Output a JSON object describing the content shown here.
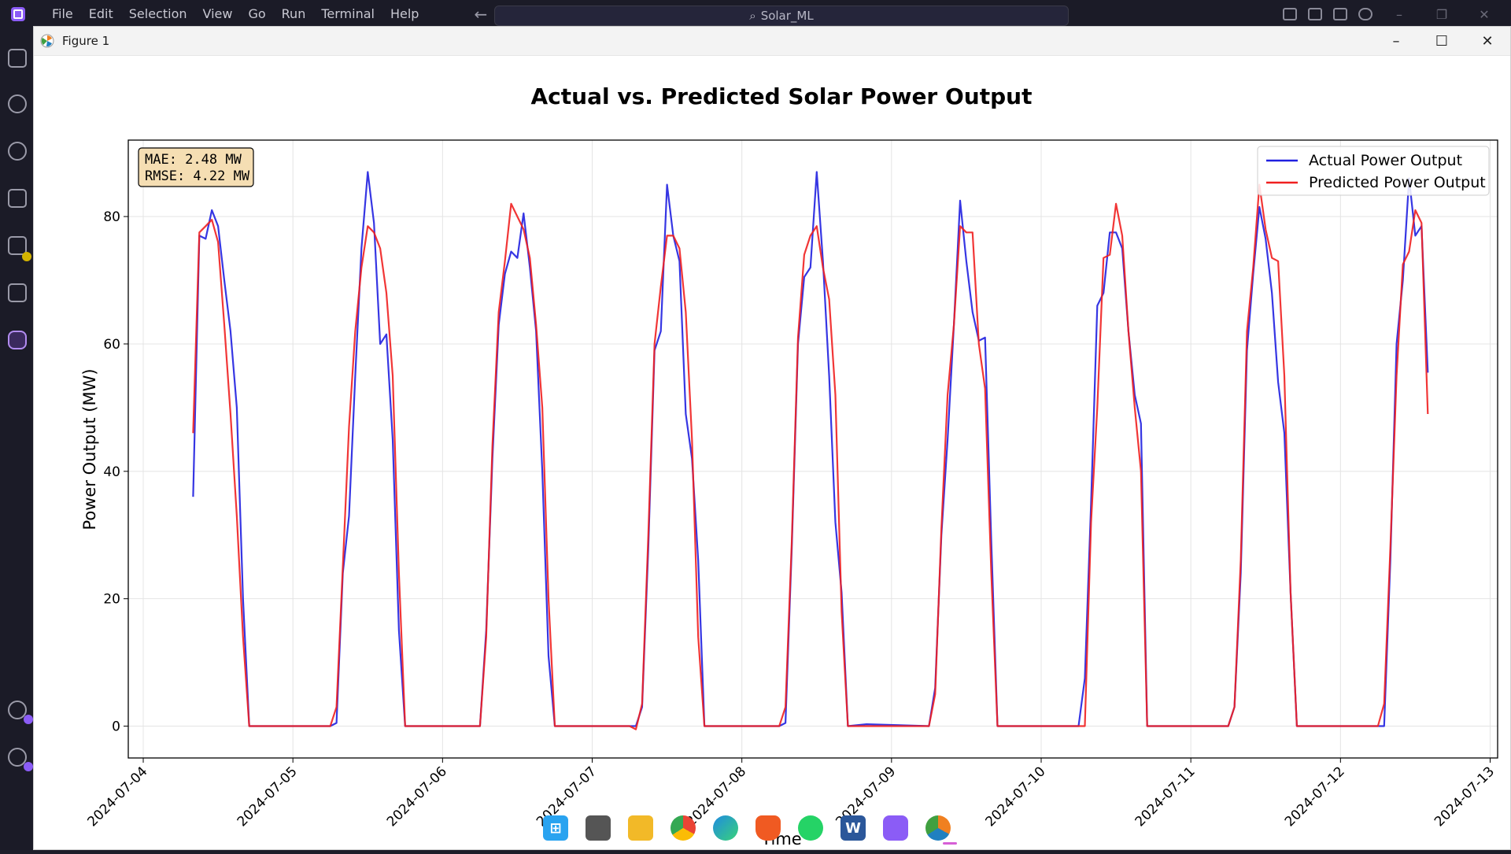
{
  "vscode": {
    "menu": [
      "File",
      "Edit",
      "Selection",
      "View",
      "Go",
      "Run",
      "Terminal",
      "Help"
    ],
    "search_text": "Solar_ML"
  },
  "figure_window": {
    "title": "Figure 1",
    "controls": [
      "–",
      "☐",
      "✕"
    ]
  },
  "chart_data": {
    "type": "line",
    "title": "Actual vs. Predicted Solar Power Output",
    "xlabel": "Time",
    "ylabel": "Power Output (MW)",
    "ylim": [
      -5,
      92
    ],
    "xlim": [
      "2024-07-04",
      "2024-07-13"
    ],
    "yticks": [
      0,
      20,
      40,
      60,
      80
    ],
    "xticks": [
      "2024-07-04",
      "2024-07-05",
      "2024-07-06",
      "2024-07-07",
      "2024-07-08",
      "2024-07-09",
      "2024-07-10",
      "2024-07-11",
      "2024-07-12",
      "2024-07-13"
    ],
    "grid": true,
    "legend_position": "upper right",
    "metrics": [
      "MAE: 2.48 MW",
      "RMSE: 4.22 MW"
    ],
    "series": [
      {
        "name": "Actual Power Output",
        "color": "#2020e0",
        "points": [
          [
            "2024-07-04 08:00",
            36
          ],
          [
            "2024-07-04 09:00",
            77
          ],
          [
            "2024-07-04 10:00",
            76.5
          ],
          [
            "2024-07-04 11:00",
            81
          ],
          [
            "2024-07-04 12:00",
            78.5
          ],
          [
            "2024-07-04 13:00",
            70
          ],
          [
            "2024-07-04 14:00",
            62
          ],
          [
            "2024-07-04 15:00",
            50
          ],
          [
            "2024-07-04 16:00",
            20
          ],
          [
            "2024-07-04 17:00",
            0
          ],
          [
            "2024-07-05 06:00",
            0
          ],
          [
            "2024-07-05 07:00",
            0.5
          ],
          [
            "2024-07-05 08:00",
            24
          ],
          [
            "2024-07-05 09:00",
            33
          ],
          [
            "2024-07-05 10:00",
            55
          ],
          [
            "2024-07-05 11:00",
            75
          ],
          [
            "2024-07-05 12:00",
            87
          ],
          [
            "2024-07-05 13:00",
            79
          ],
          [
            "2024-07-05 14:00",
            60
          ],
          [
            "2024-07-05 15:00",
            61.5
          ],
          [
            "2024-07-05 16:00",
            45
          ],
          [
            "2024-07-05 17:00",
            15
          ],
          [
            "2024-07-05 18:00",
            0
          ],
          [
            "2024-07-06 06:00",
            0
          ],
          [
            "2024-07-06 07:00",
            15
          ],
          [
            "2024-07-06 08:00",
            42
          ],
          [
            "2024-07-06 09:00",
            63
          ],
          [
            "2024-07-06 10:00",
            71
          ],
          [
            "2024-07-06 11:00",
            74.5
          ],
          [
            "2024-07-06 12:00",
            73.5
          ],
          [
            "2024-07-06 13:00",
            80.5
          ],
          [
            "2024-07-06 14:00",
            72
          ],
          [
            "2024-07-06 15:00",
            62
          ],
          [
            "2024-07-06 16:00",
            40
          ],
          [
            "2024-07-06 17:00",
            11
          ],
          [
            "2024-07-06 18:00",
            0
          ],
          [
            "2024-07-07 06:00",
            0
          ],
          [
            "2024-07-07 07:00",
            0
          ],
          [
            "2024-07-07 08:00",
            3
          ],
          [
            "2024-07-07 09:00",
            28
          ],
          [
            "2024-07-07 10:00",
            59
          ],
          [
            "2024-07-07 11:00",
            62
          ],
          [
            "2024-07-07 12:00",
            85
          ],
          [
            "2024-07-07 13:00",
            77
          ],
          [
            "2024-07-07 14:00",
            73
          ],
          [
            "2024-07-07 15:00",
            49
          ],
          [
            "2024-07-07 16:00",
            42
          ],
          [
            "2024-07-07 17:00",
            26
          ],
          [
            "2024-07-07 18:00",
            0
          ],
          [
            "2024-07-08 06:00",
            0
          ],
          [
            "2024-07-08 07:00",
            0.5
          ],
          [
            "2024-07-08 08:00",
            28
          ],
          [
            "2024-07-08 09:00",
            60
          ],
          [
            "2024-07-08 10:00",
            70.5
          ],
          [
            "2024-07-08 11:00",
            72
          ],
          [
            "2024-07-08 12:00",
            87
          ],
          [
            "2024-07-08 13:00",
            73
          ],
          [
            "2024-07-08 14:00",
            55
          ],
          [
            "2024-07-08 15:00",
            32
          ],
          [
            "2024-07-08 16:00",
            21
          ],
          [
            "2024-07-08 17:00",
            0
          ],
          [
            "2024-07-08 20:00",
            0.3
          ],
          [
            "2024-07-09 06:00",
            0
          ],
          [
            "2024-07-09 07:00",
            6
          ],
          [
            "2024-07-09 08:00",
            30
          ],
          [
            "2024-07-09 09:00",
            45
          ],
          [
            "2024-07-09 10:00",
            63
          ],
          [
            "2024-07-09 11:00",
            82.5
          ],
          [
            "2024-07-09 12:00",
            73
          ],
          [
            "2024-07-09 13:00",
            65
          ],
          [
            "2024-07-09 14:00",
            60.5
          ],
          [
            "2024-07-09 15:00",
            61
          ],
          [
            "2024-07-09 16:00",
            29
          ],
          [
            "2024-07-09 17:00",
            0
          ],
          [
            "2024-07-10 06:00",
            0
          ],
          [
            "2024-07-10 07:00",
            7.5
          ],
          [
            "2024-07-10 08:00",
            35
          ],
          [
            "2024-07-10 09:00",
            66
          ],
          [
            "2024-07-10 10:00",
            68
          ],
          [
            "2024-07-10 11:00",
            77.5
          ],
          [
            "2024-07-10 12:00",
            77.5
          ],
          [
            "2024-07-10 13:00",
            75
          ],
          [
            "2024-07-10 14:00",
            62
          ],
          [
            "2024-07-10 15:00",
            52
          ],
          [
            "2024-07-10 16:00",
            47.5
          ],
          [
            "2024-07-10 17:00",
            0
          ],
          [
            "2024-07-11 06:00",
            0
          ],
          [
            "2024-07-11 07:00",
            3
          ],
          [
            "2024-07-11 08:00",
            24
          ],
          [
            "2024-07-11 09:00",
            59
          ],
          [
            "2024-07-11 10:00",
            71
          ],
          [
            "2024-07-11 11:00",
            81.5
          ],
          [
            "2024-07-11 12:00",
            76.5
          ],
          [
            "2024-07-11 13:00",
            68
          ],
          [
            "2024-07-11 14:00",
            54
          ],
          [
            "2024-07-11 15:00",
            46
          ],
          [
            "2024-07-11 16:00",
            21
          ],
          [
            "2024-07-11 17:00",
            0
          ],
          [
            "2024-07-12 06:00",
            0
          ],
          [
            "2024-07-12 07:00",
            0
          ],
          [
            "2024-07-12 08:00",
            26
          ],
          [
            "2024-07-12 09:00",
            60
          ],
          [
            "2024-07-12 10:00",
            70
          ],
          [
            "2024-07-12 11:00",
            86
          ],
          [
            "2024-07-12 12:00",
            77
          ],
          [
            "2024-07-12 13:00",
            78.5
          ],
          [
            "2024-07-12 14:00",
            55.5
          ]
        ]
      },
      {
        "name": "Predicted Power Output",
        "color": "#f02020",
        "points": [
          [
            "2024-07-04 08:00",
            46
          ],
          [
            "2024-07-04 09:00",
            77.5
          ],
          [
            "2024-07-04 10:00",
            78.5
          ],
          [
            "2024-07-04 11:00",
            79.5
          ],
          [
            "2024-07-04 12:00",
            76
          ],
          [
            "2024-07-04 13:00",
            63
          ],
          [
            "2024-07-04 14:00",
            49
          ],
          [
            "2024-07-04 15:00",
            33
          ],
          [
            "2024-07-04 16:00",
            14
          ],
          [
            "2024-07-04 17:00",
            0
          ],
          [
            "2024-07-05 06:00",
            0
          ],
          [
            "2024-07-05 07:00",
            3
          ],
          [
            "2024-07-05 08:00",
            25
          ],
          [
            "2024-07-05 09:00",
            47
          ],
          [
            "2024-07-05 10:00",
            62
          ],
          [
            "2024-07-05 11:00",
            72
          ],
          [
            "2024-07-05 12:00",
            78.5
          ],
          [
            "2024-07-05 13:00",
            77.5
          ],
          [
            "2024-07-05 14:00",
            75
          ],
          [
            "2024-07-05 15:00",
            68
          ],
          [
            "2024-07-05 16:00",
            55
          ],
          [
            "2024-07-05 17:00",
            24
          ],
          [
            "2024-07-05 18:00",
            0
          ],
          [
            "2024-07-06 06:00",
            0
          ],
          [
            "2024-07-06 07:00",
            14
          ],
          [
            "2024-07-06 08:00",
            44
          ],
          [
            "2024-07-06 09:00",
            65
          ],
          [
            "2024-07-06 10:00",
            73
          ],
          [
            "2024-07-06 11:00",
            82
          ],
          [
            "2024-07-06 12:00",
            80
          ],
          [
            "2024-07-06 13:00",
            78
          ],
          [
            "2024-07-06 14:00",
            73.5
          ],
          [
            "2024-07-06 15:00",
            63
          ],
          [
            "2024-07-06 16:00",
            50
          ],
          [
            "2024-07-06 17:00",
            20
          ],
          [
            "2024-07-06 18:00",
            0
          ],
          [
            "2024-07-07 06:00",
            0
          ],
          [
            "2024-07-07 07:00",
            -0.5
          ],
          [
            "2024-07-07 08:00",
            3.5
          ],
          [
            "2024-07-07 09:00",
            30
          ],
          [
            "2024-07-07 10:00",
            60
          ],
          [
            "2024-07-07 11:00",
            69
          ],
          [
            "2024-07-07 12:00",
            77
          ],
          [
            "2024-07-07 13:00",
            77
          ],
          [
            "2024-07-07 14:00",
            75
          ],
          [
            "2024-07-07 15:00",
            65
          ],
          [
            "2024-07-07 16:00",
            45
          ],
          [
            "2024-07-07 17:00",
            14
          ],
          [
            "2024-07-07 18:00",
            0
          ],
          [
            "2024-07-08 06:00",
            0
          ],
          [
            "2024-07-08 07:00",
            3
          ],
          [
            "2024-07-08 08:00",
            29
          ],
          [
            "2024-07-08 09:00",
            61
          ],
          [
            "2024-07-08 10:00",
            74
          ],
          [
            "2024-07-08 11:00",
            77
          ],
          [
            "2024-07-08 12:00",
            78.5
          ],
          [
            "2024-07-08 13:00",
            72
          ],
          [
            "2024-07-08 14:00",
            67
          ],
          [
            "2024-07-08 15:00",
            52
          ],
          [
            "2024-07-08 16:00",
            18
          ],
          [
            "2024-07-08 17:00",
            0
          ],
          [
            "2024-07-09 06:00",
            0
          ],
          [
            "2024-07-09 07:00",
            5
          ],
          [
            "2024-07-09 08:00",
            31
          ],
          [
            "2024-07-09 09:00",
            52
          ],
          [
            "2024-07-09 10:00",
            63
          ],
          [
            "2024-07-09 11:00",
            78.5
          ],
          [
            "2024-07-09 12:00",
            77.5
          ],
          [
            "2024-07-09 13:00",
            77.5
          ],
          [
            "2024-07-09 14:00",
            60
          ],
          [
            "2024-07-09 15:00",
            53
          ],
          [
            "2024-07-09 16:00",
            24
          ],
          [
            "2024-07-09 17:00",
            0
          ],
          [
            "2024-07-10 06:00",
            0
          ],
          [
            "2024-07-10 07:00",
            0
          ],
          [
            "2024-07-10 08:00",
            32
          ],
          [
            "2024-07-10 09:00",
            50
          ],
          [
            "2024-07-10 10:00",
            73.5
          ],
          [
            "2024-07-10 11:00",
            74
          ],
          [
            "2024-07-10 12:00",
            82
          ],
          [
            "2024-07-10 13:00",
            77
          ],
          [
            "2024-07-10 14:00",
            62
          ],
          [
            "2024-07-10 15:00",
            50
          ],
          [
            "2024-07-10 16:00",
            40
          ],
          [
            "2024-07-10 17:00",
            0
          ],
          [
            "2024-07-11 06:00",
            0
          ],
          [
            "2024-07-11 07:00",
            3
          ],
          [
            "2024-07-11 08:00",
            26
          ],
          [
            "2024-07-11 09:00",
            62
          ],
          [
            "2024-07-11 10:00",
            72
          ],
          [
            "2024-07-11 11:00",
            85
          ],
          [
            "2024-07-11 12:00",
            78
          ],
          [
            "2024-07-11 13:00",
            73.5
          ],
          [
            "2024-07-11 14:00",
            73
          ],
          [
            "2024-07-11 15:00",
            55
          ],
          [
            "2024-07-11 16:00",
            21
          ],
          [
            "2024-07-11 17:00",
            0
          ],
          [
            "2024-07-12 06:00",
            0
          ],
          [
            "2024-07-12 07:00",
            3.5
          ],
          [
            "2024-07-12 08:00",
            28
          ],
          [
            "2024-07-12 09:00",
            55
          ],
          [
            "2024-07-12 10:00",
            72.5
          ],
          [
            "2024-07-12 11:00",
            74.5
          ],
          [
            "2024-07-12 12:00",
            81
          ],
          [
            "2024-07-12 13:00",
            79
          ],
          [
            "2024-07-12 14:00",
            49
          ]
        ]
      }
    ]
  },
  "taskbar": {
    "apps": [
      {
        "icon": "windows-start-icon",
        "color": "#29a3f0"
      },
      {
        "icon": "task-view-icon",
        "color": "#555555"
      },
      {
        "icon": "file-explorer-icon",
        "color": "#f2b928"
      },
      {
        "icon": "chrome-icon",
        "color": "#34a853"
      },
      {
        "icon": "edge-icon",
        "color": "#1f8be0"
      },
      {
        "icon": "brave-icon",
        "color": "#f05a22"
      },
      {
        "icon": "whatsapp-icon",
        "color": "#25d366"
      },
      {
        "icon": "word-icon",
        "color": "#2b579a"
      },
      {
        "icon": "vscode-variant-icon",
        "color": "#8b5cf6"
      },
      {
        "icon": "python-figure-icon",
        "color": "#f0c84a"
      }
    ]
  }
}
